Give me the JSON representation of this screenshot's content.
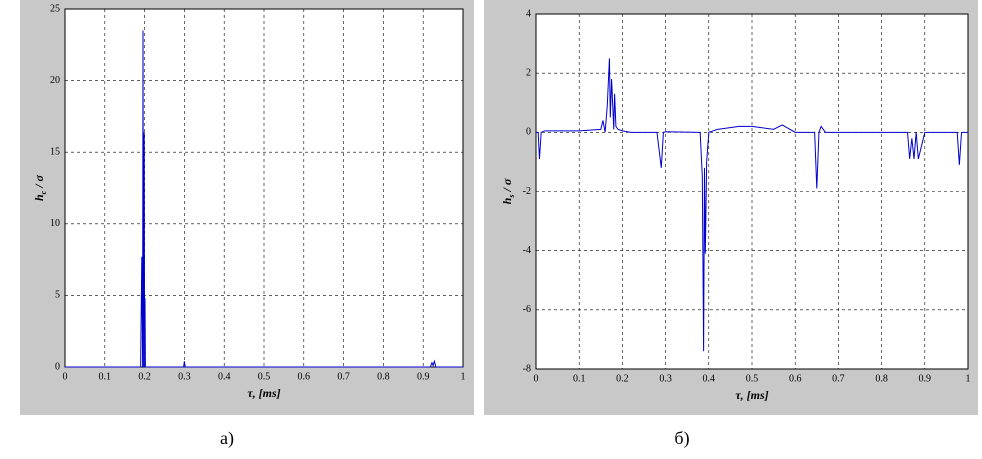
{
  "chart_data": [
    {
      "type": "line",
      "caption": "а)",
      "xlabel": "τ, [ms]",
      "ylabel": [
        "h",
        "c",
        " / σ"
      ],
      "x": [
        0,
        0.19,
        0.193,
        0.195,
        0.196,
        0.197,
        0.198,
        0.199,
        0.2,
        0.201,
        0.202,
        0.204,
        0.206,
        0.298,
        0.3,
        0.302,
        0.918,
        0.922,
        0.925,
        0.928,
        0.932,
        1
      ],
      "series": [
        {
          "color": "#0000cc",
          "values": [
            0,
            0,
            7.7,
            0,
            23.5,
            0,
            13.6,
            16.4,
            0,
            4.8,
            0,
            0,
            0,
            0,
            0.4,
            0,
            0,
            0.3,
            0.1,
            0.4,
            0,
            0
          ]
        }
      ],
      "xlim": [
        0,
        1
      ],
      "xticks": [
        0,
        0.1,
        0.2,
        0.3,
        0.4,
        0.5,
        0.6,
        0.7,
        0.8,
        0.9,
        1
      ],
      "ylim": [
        0,
        25
      ],
      "yticks": [
        0,
        5,
        10,
        15,
        20,
        25
      ],
      "grid": true
    },
    {
      "type": "line",
      "caption": "б)",
      "xlabel": "τ, [ms]",
      "ylabel": [
        "h",
        "s",
        " / σ"
      ],
      "x": [
        0,
        0.005,
        0.008,
        0.012,
        0.02,
        0.1,
        0.15,
        0.155,
        0.16,
        0.165,
        0.17,
        0.172,
        0.175,
        0.18,
        0.182,
        0.185,
        0.19,
        0.2,
        0.22,
        0.28,
        0.29,
        0.295,
        0.3,
        0.38,
        0.385,
        0.388,
        0.39,
        0.392,
        0.395,
        0.4,
        0.42,
        0.47,
        0.5,
        0.55,
        0.57,
        0.6,
        0.645,
        0.65,
        0.655,
        0.66,
        0.67,
        0.7,
        0.86,
        0.865,
        0.87,
        0.875,
        0.88,
        0.885,
        0.9,
        0.975,
        0.98,
        0.985,
        1
      ],
      "series": [
        {
          "color": "#0000cc",
          "values": [
            0,
            0,
            -0.9,
            0,
            0.05,
            0.05,
            0.1,
            0.4,
            0,
            0.9,
            2.5,
            0.5,
            1.8,
            0.1,
            1.3,
            0.2,
            0.1,
            0.05,
            0,
            0,
            -1.2,
            0,
            0.02,
            0,
            -1.5,
            -7.4,
            -1.2,
            -4.1,
            -1,
            0,
            0.1,
            0.2,
            0.2,
            0.1,
            0.25,
            0,
            0,
            -1.9,
            0,
            0.2,
            0,
            0,
            0,
            -0.9,
            -0.2,
            -0.9,
            0,
            -0.9,
            0,
            0,
            -1.1,
            0,
            0
          ]
        }
      ],
      "xlim": [
        0,
        1
      ],
      "xticks": [
        0,
        0.1,
        0.2,
        0.3,
        0.4,
        0.5,
        0.6,
        0.7,
        0.8,
        0.9,
        1
      ],
      "ylim": [
        -8,
        4
      ],
      "yticks": [
        -8,
        -6,
        -4,
        -2,
        0,
        2,
        4
      ],
      "grid": true
    }
  ]
}
